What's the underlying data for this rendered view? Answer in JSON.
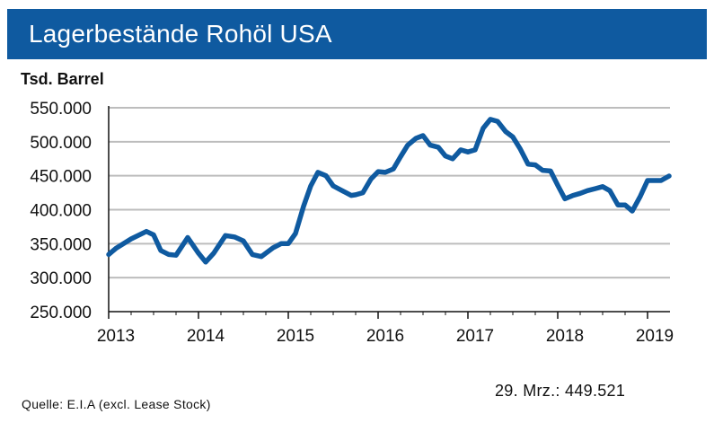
{
  "header": {
    "title": "Lagerbestände Rohöl USA"
  },
  "footer": {
    "latest_value": "29. Mrz.: 449.521",
    "source": "Quelle: E.I.A   (excl. Lease Stock)"
  },
  "colors": {
    "header_bg": "#0f5aa0",
    "line": "#0f5aa0",
    "grid": "#bdbdbd"
  },
  "chart_data": {
    "type": "line",
    "title": "Lagerbestände Rohöl USA",
    "ylabel": "Tsd. Barrel",
    "xlabel": "",
    "ylim": [
      250000,
      550000
    ],
    "xlim": [
      2013.0,
      2019.25
    ],
    "grid": "horizontal",
    "y_ticks": [
      250000,
      300000,
      350000,
      400000,
      450000,
      500000,
      550000
    ],
    "y_tick_labels": [
      "250.000",
      "300.000",
      "350.000",
      "400.000",
      "450.000",
      "500.000",
      "550.000"
    ],
    "x_ticks": [
      2013,
      2014,
      2015,
      2016,
      2017,
      2018,
      2019
    ],
    "x_tick_labels": [
      "2013",
      "2014",
      "2015",
      "2016",
      "2017",
      "2018",
      "2019"
    ],
    "series": [
      {
        "x": [
          2013.0,
          2013.08,
          2013.25,
          2013.42,
          2013.5,
          2013.58,
          2013.67,
          2013.75,
          2013.88,
          2014.0,
          2014.08,
          2014.17,
          2014.3,
          2014.4,
          2014.5,
          2014.6,
          2014.7,
          2014.83,
          2014.92,
          2015.0,
          2015.08,
          2015.17,
          2015.25,
          2015.33,
          2015.42,
          2015.5,
          2015.6,
          2015.7,
          2015.75,
          2015.83,
          2015.92,
          2016.0,
          2016.08,
          2016.17,
          2016.25,
          2016.33,
          2016.42,
          2016.5,
          2016.58,
          2016.67,
          2016.75,
          2016.83,
          2016.92,
          2017.0,
          2017.08,
          2017.17,
          2017.25,
          2017.33,
          2017.42,
          2017.5,
          2017.58,
          2017.67,
          2017.75,
          2017.83,
          2017.92,
          2018.0,
          2018.08,
          2018.17,
          2018.25,
          2018.33,
          2018.42,
          2018.5,
          2018.58,
          2018.67,
          2018.75,
          2018.83,
          2018.92,
          2019.0,
          2019.08,
          2019.15,
          2019.24
        ],
        "y": [
          334000,
          343000,
          357000,
          368000,
          363000,
          340000,
          334000,
          333000,
          359000,
          336000,
          323000,
          336000,
          362000,
          360000,
          354000,
          334000,
          331000,
          344000,
          350000,
          350000,
          365000,
          405000,
          435000,
          455000,
          450000,
          435000,
          428000,
          421000,
          422000,
          425000,
          445000,
          456000,
          455000,
          460000,
          478000,
          495000,
          505000,
          509000,
          495000,
          492000,
          479000,
          475000,
          488000,
          485000,
          488000,
          520000,
          533000,
          530000,
          515000,
          507000,
          490000,
          467000,
          466000,
          458000,
          457000,
          436000,
          416000,
          421000,
          424000,
          428000,
          431000,
          434000,
          428000,
          407000,
          407000,
          398000,
          420000,
          443000,
          443000,
          443000,
          449521
        ]
      }
    ]
  }
}
